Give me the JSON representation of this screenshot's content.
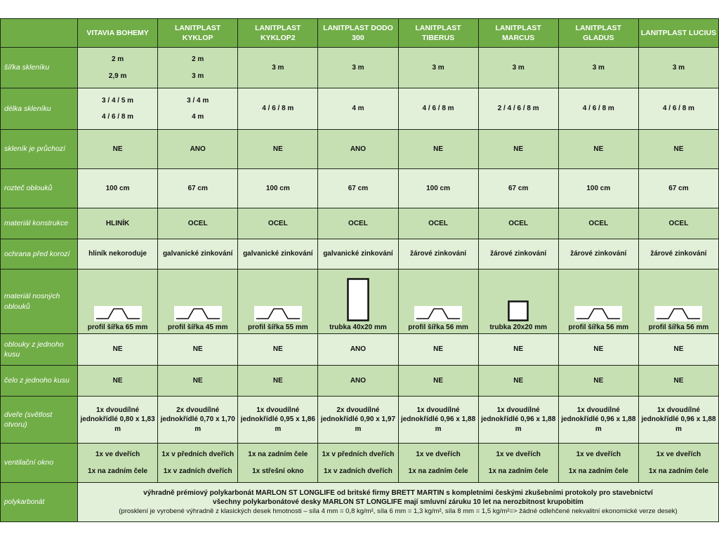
{
  "columns": [
    "VITAVIA BOHEMY",
    "LANITPLAST KYKLOP",
    "LANITPLAST KYKLOP2",
    "LANITPLAST DODO 300",
    "LANITPLAST TIBERUS",
    "LANITPLAST MARCUS",
    "LANITPLAST GLADUS",
    "LANITPLAST LUCIUS"
  ],
  "rows": [
    {
      "label": "šířka skleníku",
      "h": 58,
      "cls": "a",
      "values": [
        [
          "2 m",
          "2,9 m"
        ],
        [
          "2 m",
          "3 m"
        ],
        [
          "3 m"
        ],
        [
          "3 m"
        ],
        [
          "3 m"
        ],
        [
          "3 m"
        ],
        [
          "3 m"
        ],
        [
          "3 m"
        ]
      ]
    },
    {
      "label": "délka skleníku",
      "h": 59,
      "cls": "b",
      "values": [
        [
          "3 / 4 / 5 m",
          "4 / 6 / 8 m"
        ],
        [
          "3 / 4 m",
          "4 m"
        ],
        [
          "4 / 6 / 8 m"
        ],
        [
          "4 m"
        ],
        [
          "4 / 6 / 8 m"
        ],
        [
          "2 / 4 / 6 / 8 m"
        ],
        [
          "4 / 6 / 8 m"
        ],
        [
          "4 / 6 / 8 m"
        ]
      ]
    },
    {
      "label": "skleník je průchozí",
      "h": 56,
      "cls": "a",
      "values": [
        [
          "NE"
        ],
        [
          "ANO"
        ],
        [
          "NE"
        ],
        [
          "ANO"
        ],
        [
          "NE"
        ],
        [
          "NE"
        ],
        [
          "NE"
        ],
        [
          "NE"
        ]
      ]
    },
    {
      "label": "rozteč oblouků",
      "h": 56,
      "cls": "b",
      "values": [
        [
          "100 cm"
        ],
        [
          "67 cm"
        ],
        [
          "100 cm"
        ],
        [
          "67 cm"
        ],
        [
          "100 cm"
        ],
        [
          "67 cm"
        ],
        [
          "100 cm"
        ],
        [
          "67 cm"
        ]
      ]
    },
    {
      "label": "materiál konstrukce",
      "h": 44,
      "cls": "a",
      "values": [
        [
          "HLINÍK"
        ],
        [
          "OCEL"
        ],
        [
          "OCEL"
        ],
        [
          "OCEL"
        ],
        [
          "OCEL"
        ],
        [
          "OCEL"
        ],
        [
          "OCEL"
        ],
        [
          "OCEL"
        ]
      ]
    },
    {
      "label": "ochrana před korozí",
      "h": 43,
      "cls": "b",
      "values": [
        [
          "hliník nekoroduje"
        ],
        [
          "galvanické zinkování"
        ],
        [
          "galvanické zinkování"
        ],
        [
          "galvanické zinkování"
        ],
        [
          "žárové zinkování"
        ],
        [
          "žárové zinkování"
        ],
        [
          "žárové zinkování"
        ],
        [
          "žárové zinkování"
        ]
      ]
    },
    {
      "label": "materiál nosných oblouků",
      "h": 92,
      "cls": "a",
      "profile": true,
      "values": [
        [
          "profil šířka 65 mm"
        ],
        [
          "profil šířka 45 mm"
        ],
        [
          "profil šířka 55 mm"
        ],
        [
          "trubka 40x20 mm"
        ],
        [
          "profil šířka 56 mm"
        ],
        [
          "trubka 20x20 mm"
        ],
        [
          "profil šířka 56 mm"
        ],
        [
          "profil šířka 56 mm"
        ]
      ],
      "profile_icons": [
        "hat-profile",
        "hat-profile",
        "hat-profile",
        "rect-tube-tall",
        "hat-profile",
        "square-tube",
        "hat-profile",
        "hat-profile"
      ]
    },
    {
      "label": "oblouky z jednoho kusu",
      "h": 45,
      "cls": "b",
      "values": [
        [
          "NE"
        ],
        [
          "NE"
        ],
        [
          "NE"
        ],
        [
          "ANO"
        ],
        [
          "NE"
        ],
        [
          "NE"
        ],
        [
          "NE"
        ],
        [
          "NE"
        ]
      ]
    },
    {
      "label": "čelo z jednoho kusu",
      "h": 44,
      "cls": "a",
      "values": [
        [
          "NE"
        ],
        [
          "NE"
        ],
        [
          "NE"
        ],
        [
          "ANO"
        ],
        [
          "NE"
        ],
        [
          "NE"
        ],
        [
          "NE"
        ],
        [
          "NE"
        ]
      ]
    },
    {
      "label": "dveře (světlost otvoru)",
      "h": 67,
      "cls": "b",
      "values": [
        [
          "1x dvoudílné jednokřídlé 0,80 x 1,83 m"
        ],
        [
          "2x dvoudílné jednokřídlé 0,70 x 1,70 m"
        ],
        [
          "1x dvoudílné jednokřídlé 0,95 x 1,86 m"
        ],
        [
          "2x dvoudílné jednokřídlé 0,90 x 1,97 m"
        ],
        [
          "1x dvoudílné jednokřídlé 0,96 x 1,88 m"
        ],
        [
          "1x dvoudílné jednokřídlé 0,96 x 1,88 m"
        ],
        [
          "1x dvoudílné jednokřídlé 0,96 x 1,88 m"
        ],
        [
          "1x dvoudílné jednokřídlé 0,96 x 1,88 m"
        ]
      ]
    },
    {
      "label": "ventilační okno",
      "h": 56,
      "cls": "a",
      "values": [
        [
          "1x ve dveřích",
          "1x na zadním čele"
        ],
        [
          "1x v předních dveřích",
          "1x v zadních dveřích"
        ],
        [
          "1x na zadním čele",
          "1x střešní okno"
        ],
        [
          "1x v předních dveřích",
          "1x v zadních dveřích"
        ],
        [
          "1x ve dveřích",
          "1x na zadním čele"
        ],
        [
          "1x ve dveřích",
          "1x na zadním čele"
        ],
        [
          "1x ve dveřích",
          "1x na zadním čele"
        ],
        [
          "1x ve dveřích",
          "1x na zadním čele"
        ]
      ]
    }
  ],
  "polycarbonate": {
    "label": "polykarbonát",
    "line1": "výhradně prémiový polykarbonát MARLON ST LONGLIFE od britské firmy BRETT MARTIN s kompletními českými zkušebními protokoly pro stavebnictví",
    "line2": "všechny polykarbonátové desky MARLON ST LONGLIFE mají smluvní záruku 10 let na nerozbitnost krupobitím",
    "line3": "(prosklení je vyrobené výhradně z klasických desek hmotnosti – síla 4 mm = 0,8 kg/m², síla 6 mm = 1,3 kg/m², síla 8 mm = 1,5 kg/m²=> žádné odlehčené nekvalitní ekonomické verze desek)"
  },
  "colors": {
    "header": "#70ad47",
    "row_a": "#c6e0b4",
    "row_b": "#e2efd9"
  }
}
